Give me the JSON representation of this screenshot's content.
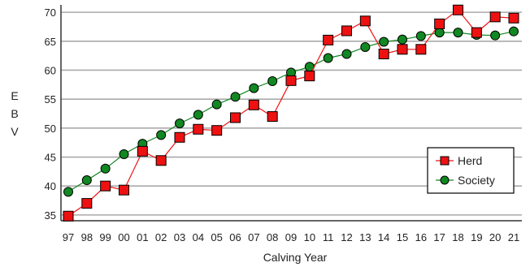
{
  "chart_data": {
    "type": "line",
    "xlabel": "Calving Year",
    "ylabel": "EBV",
    "categories": [
      "97",
      "98",
      "99",
      "00",
      "01",
      "02",
      "03",
      "04",
      "05",
      "06",
      "07",
      "08",
      "09",
      "10",
      "11",
      "12",
      "13",
      "14",
      "15",
      "16",
      "17",
      "18",
      "19",
      "20",
      "21"
    ],
    "ylim": [
      34,
      71
    ],
    "yticks": [
      35,
      40,
      45,
      50,
      55,
      60,
      65,
      70
    ],
    "grid": "horizontal",
    "legend_position": "bottom-right",
    "colors": {
      "herd": "#ee1111",
      "society": "#118822",
      "grid": "#aaaaaa",
      "axis": "#333333"
    },
    "series": [
      {
        "name": "Herd",
        "marker": "square",
        "values": [
          34.8,
          37.0,
          40.0,
          39.3,
          46.0,
          44.4,
          48.4,
          49.8,
          49.6,
          51.8,
          54.0,
          52.0,
          58.2,
          59.0,
          65.2,
          66.8,
          68.5,
          62.8,
          63.6,
          63.6,
          68.0,
          70.4,
          66.5,
          69.2,
          69.0
        ]
      },
      {
        "name": "Society",
        "marker": "circle",
        "values": [
          39.0,
          41.0,
          43.0,
          45.5,
          47.3,
          48.8,
          50.8,
          52.3,
          54.1,
          55.4,
          56.9,
          58.1,
          59.6,
          60.6,
          62.1,
          62.8,
          64.0,
          64.9,
          65.3,
          65.9,
          66.5,
          66.5,
          66.1,
          66.0,
          66.7
        ]
      }
    ]
  }
}
